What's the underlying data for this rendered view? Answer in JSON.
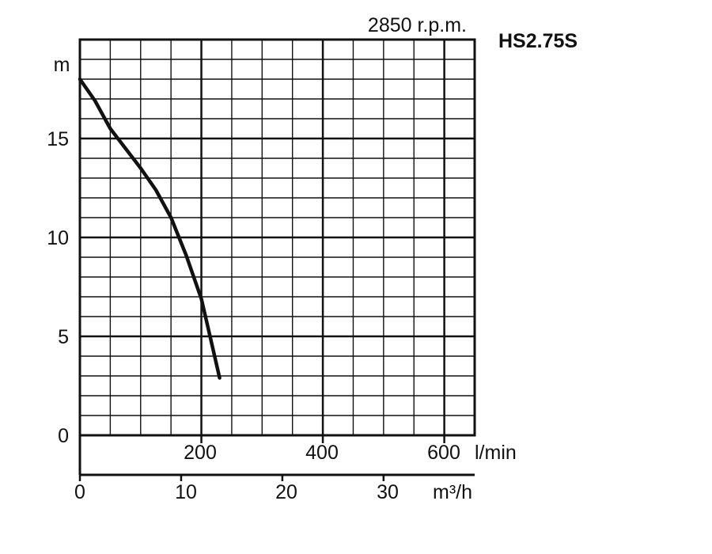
{
  "chart_data": {
    "type": "line",
    "model": "HS2.75S",
    "speed_label": "2850 r.p.m.",
    "ylabel": "m",
    "ylim": [
      0,
      20
    ],
    "yticks": [
      "0",
      "5",
      "10",
      "15"
    ],
    "x_lpm": {
      "unit_label": "l/min",
      "range": [
        0,
        650
      ],
      "ticks": [
        {
          "value": 200,
          "label": "200"
        },
        {
          "value": 400,
          "label": "400"
        },
        {
          "value": 600,
          "label": "600"
        }
      ]
    },
    "x_m3h": {
      "unit_label": "m³/h",
      "range": [
        0,
        39
      ],
      "ticks": [
        {
          "value": 0,
          "label": "0"
        },
        {
          "value": 10,
          "label": "10"
        },
        {
          "value": 20,
          "label": "20"
        },
        {
          "value": 30,
          "label": "30"
        }
      ]
    },
    "grid": true,
    "series": [
      {
        "x_lpm": [
          0,
          25,
          50,
          75,
          100,
          125,
          150,
          175,
          200,
          215,
          230
        ],
        "y_m": [
          18.0,
          16.9,
          15.5,
          14.5,
          13.5,
          12.4,
          11.0,
          9.1,
          6.9,
          4.9,
          2.9
        ]
      }
    ]
  }
}
